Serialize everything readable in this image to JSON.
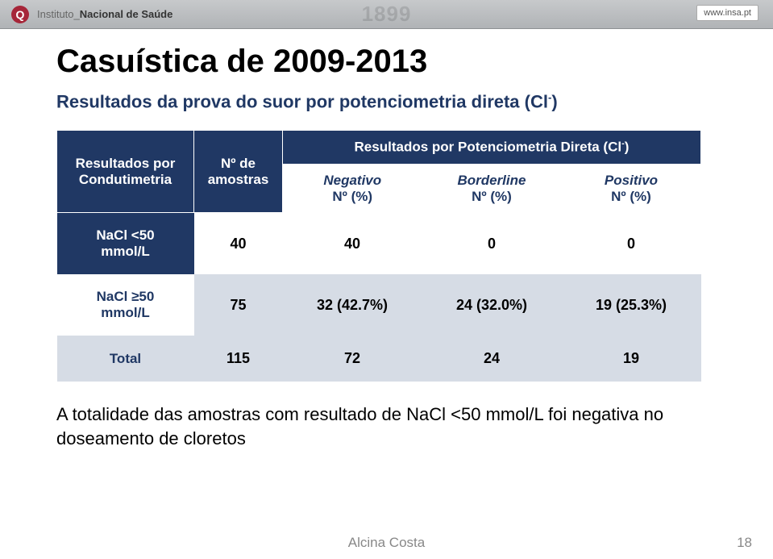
{
  "header": {
    "institute_prefix": "Instituto_",
    "institute_bold": "Nacional de Saúde",
    "watermark_year": "1899",
    "url": "www.insa.pt",
    "logo_letter": "Q"
  },
  "title": "Casuística de 2009-2013",
  "subtitle_plain": "Resultados da prova do suor por potenciometria direta (Cl",
  "subtitle_sup": "-",
  "subtitle_close": ")",
  "table": {
    "col_results_label": "Resultados por Condutimetria",
    "col_n_label": "Nº de amostras",
    "span_label_plain": "Resultados por Potenciometria Direta (Cl",
    "span_label_sup": "-",
    "span_label_close": ")",
    "sub1": "Negativo",
    "sub1_line2": "Nº (%)",
    "sub2": "Borderline",
    "sub2_line2": "Nº (%)",
    "sub3": "Positivo",
    "sub3_line2": "Nº (%)",
    "rows": [
      {
        "label_line1": "NaCl <50",
        "label_line2": "mmol/L",
        "n": "40",
        "neg": "40",
        "bord": "0",
        "pos": "0",
        "dark": true
      },
      {
        "label_line1": "NaCl ≥50",
        "label_line2": "mmol/L",
        "n": "75",
        "neg": "32 (42.7%)",
        "bord": "24 (32.0%)",
        "pos": "19 (25.3%)",
        "dark": false
      },
      {
        "label_line1": "Total",
        "label_line2": "",
        "n": "115",
        "neg": "72",
        "bord": "24",
        "pos": "19",
        "dark": false,
        "total": true
      }
    ]
  },
  "note": "A totalidade das amostras com resultado de NaCl <50 mmol/L foi negativa no doseamento de cloretos",
  "footer": {
    "author": "Alcina Costa",
    "page": "18"
  },
  "colors": {
    "brand_dark": "#203864",
    "stripe": "#d6dce5",
    "topbar_grad_top": "#c7c9cb",
    "topbar_grad_bot": "#b0b3b6",
    "logo_bg": "#a62639"
  }
}
